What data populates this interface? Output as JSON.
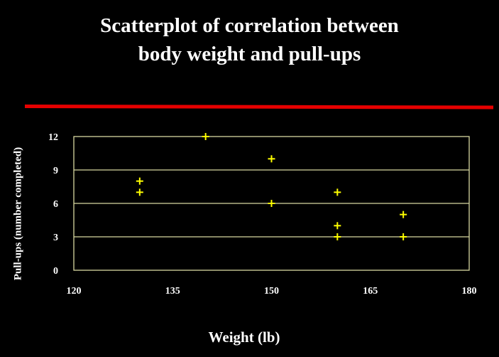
{
  "chart_data": {
    "type": "scatter",
    "title": [
      "Scatterplot of correlation between",
      "body weight and pull-ups"
    ],
    "xlabel": "Weight (lb)",
    "ylabel": "Pull-ups (number completed)",
    "xlim": [
      120,
      180
    ],
    "ylim": [
      0,
      12
    ],
    "xticks": [
      "120",
      "135",
      "150",
      "165",
      "180"
    ],
    "yticks": [
      "0",
      "3",
      "6",
      "9",
      "12"
    ],
    "grid": "horizontal",
    "marker": "plus",
    "colors": {
      "background": "#000000",
      "text": "#ffffff",
      "gridline": "#d8d8a0",
      "marker": "#ffff00",
      "rule": "#e60000"
    },
    "points": [
      {
        "x": 130,
        "y": 8
      },
      {
        "x": 130,
        "y": 7
      },
      {
        "x": 140,
        "y": 12
      },
      {
        "x": 150,
        "y": 10
      },
      {
        "x": 150,
        "y": 6
      },
      {
        "x": 160,
        "y": 7
      },
      {
        "x": 160,
        "y": 4
      },
      {
        "x": 160,
        "y": 3
      },
      {
        "x": 170,
        "y": 5
      },
      {
        "x": 170,
        "y": 3
      }
    ]
  }
}
